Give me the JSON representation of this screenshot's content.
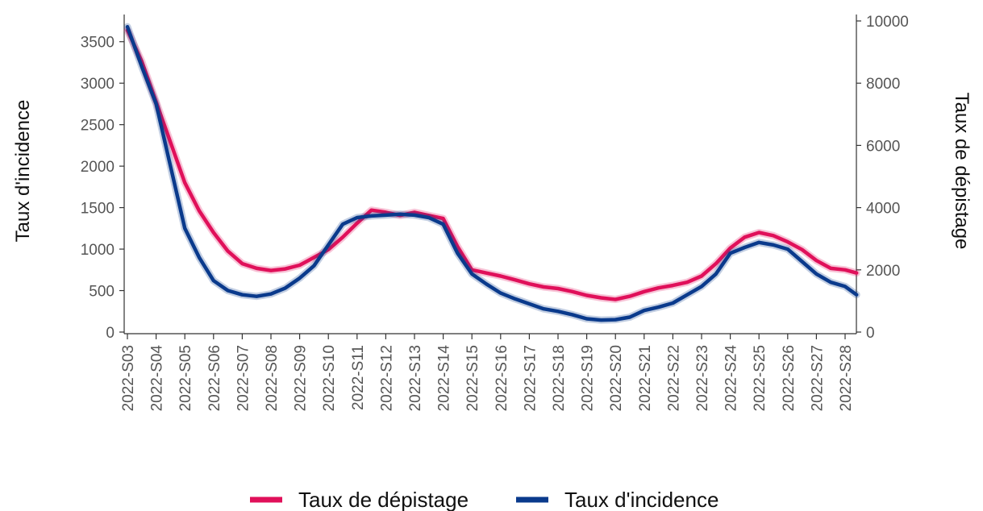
{
  "chart_data": {
    "type": "line",
    "title": "",
    "ylabel_left": "Taux d'incidence",
    "ylabel_right": "Taux de dépistage",
    "xlabel": "",
    "ylim_left": [
      0,
      3750
    ],
    "ylim_right": [
      0,
      10000
    ],
    "yticks_left": [
      "0",
      "500",
      "1000",
      "1500",
      "2000",
      "2500",
      "3000",
      "3500"
    ],
    "yticks_right": [
      "0",
      "2000",
      "4000",
      "6000",
      "8000",
      "10000"
    ],
    "xticks": [
      "2022-S03",
      "2022-S04",
      "2022-S05",
      "2022-S06",
      "2022-S07",
      "2022-S08",
      "2022-S09",
      "2022-S10",
      "2022-S11",
      "2022-S12",
      "2022-S13",
      "2022-S14",
      "2022-S15",
      "2022-S16",
      "2022-S17",
      "2022-S18",
      "2022-S19",
      "2022-S20",
      "2022-S21",
      "2022-S22",
      "2022-S23",
      "2022-S24",
      "2022-S25",
      "2022-S26",
      "2022-S27",
      "2022-S28"
    ],
    "grid": false,
    "legend_position": "bottom",
    "series": [
      {
        "name": "Taux de dépistage",
        "axis": "right",
        "color": "#e0105a",
        "x": [
          0,
          0.5,
          1,
          1.5,
          2,
          2.5,
          3,
          3.5,
          4,
          4.5,
          5,
          5.5,
          6,
          6.5,
          7,
          7.5,
          8,
          8.5,
          9,
          9.5,
          10,
          10.5,
          11,
          11.5,
          12,
          12.5,
          13,
          13.5,
          14,
          14.5,
          15,
          15.5,
          16,
          16.5,
          17,
          17.5,
          18,
          18.5,
          19,
          19.5,
          20,
          20.5,
          21,
          21.5,
          22,
          22.5,
          23,
          23.5,
          24,
          24.5,
          25,
          25.4
        ],
        "y": [
          9700,
          8700,
          7400,
          6100,
          4800,
          3900,
          3200,
          2600,
          2200,
          2050,
          1980,
          2030,
          2150,
          2400,
          2650,
          3050,
          3500,
          3920,
          3850,
          3750,
          3850,
          3750,
          3650,
          2750,
          2000,
          1900,
          1800,
          1680,
          1550,
          1450,
          1400,
          1300,
          1180,
          1100,
          1050,
          1150,
          1300,
          1420,
          1500,
          1600,
          1800,
          2200,
          2700,
          3050,
          3200,
          3100,
          2900,
          2650,
          2300,
          2050,
          2000,
          1900
        ]
      },
      {
        "name": "Taux d'incidence",
        "axis": "left",
        "color": "#0a3a8c",
        "x": [
          0,
          0.5,
          1,
          1.5,
          2,
          2.5,
          3,
          3.5,
          4,
          4.5,
          5,
          5.5,
          6,
          6.5,
          7,
          7.5,
          8,
          8.5,
          9,
          9.5,
          10,
          10.5,
          11,
          11.5,
          12,
          12.5,
          13,
          13.5,
          14,
          14.5,
          15,
          15.5,
          16,
          16.5,
          17,
          17.5,
          18,
          18.5,
          19,
          19.5,
          20,
          20.5,
          21,
          21.5,
          22,
          22.5,
          23,
          23.5,
          24,
          24.5,
          25,
          25.4
        ],
        "y": [
          3680,
          3200,
          2750,
          2000,
          1250,
          900,
          620,
          500,
          450,
          430,
          460,
          530,
          650,
          800,
          1050,
          1300,
          1380,
          1400,
          1410,
          1420,
          1410,
          1380,
          1300,
          950,
          700,
          580,
          470,
          400,
          340,
          280,
          250,
          210,
          160,
          145,
          150,
          180,
          260,
          300,
          350,
          450,
          550,
          700,
          950,
          1020,
          1080,
          1050,
          1000,
          850,
          700,
          600,
          550,
          450
        ]
      }
    ]
  },
  "legend": {
    "items": [
      {
        "label": "Taux de dépistage",
        "color": "#e0105a"
      },
      {
        "label": "Taux d'incidence",
        "color": "#0a3a8c"
      }
    ]
  }
}
